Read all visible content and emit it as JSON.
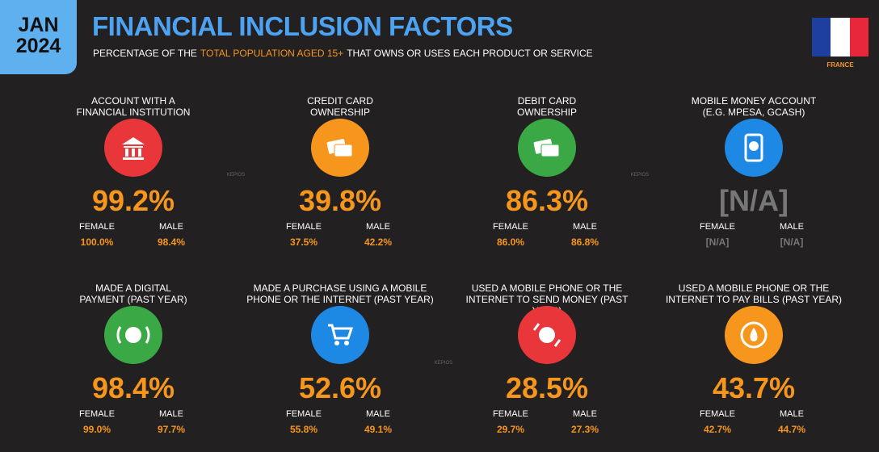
{
  "header": {
    "month": "JAN",
    "year": "2024",
    "title": "FINANCIAL INCLUSION FACTORS",
    "subtitle": [
      "PERCENTAGE OF THE",
      "TOTAL POPULATION AGED 15+",
      "THAT OWNS OR USES EACH PRODUCT OR SERVICE"
    ],
    "country": "FRANCE"
  },
  "watermark": "KEPIOS",
  "tiles": [
    {
      "label": [
        "ACCOUNT WITH A",
        "FINANCIAL INSTITUTION"
      ],
      "value": "99.2%",
      "female_label": "FEMALE",
      "female": "100.0%",
      "male_label": "MALE",
      "male": "98.4%",
      "color": "#e8363a"
    },
    {
      "label": [
        "CREDIT CARD",
        "OWNERSHIP"
      ],
      "value": "39.8%",
      "female_label": "FEMALE",
      "female": "37.5%",
      "male_label": "MALE",
      "male": "42.2%",
      "color": "#f7961c"
    },
    {
      "label": [
        "DEBIT CARD",
        "OWNERSHIP"
      ],
      "value": "86.3%",
      "female_label": "FEMALE",
      "female": "86.0%",
      "male_label": "MALE",
      "male": "86.8%",
      "color": "#3aa844"
    },
    {
      "label": [
        "MOBILE MONEY ACCOUNT",
        "(E.G. MPESA, GCASH)"
      ],
      "value": "[N/A]",
      "female_label": "FEMALE",
      "female": "[N/A]",
      "male_label": "MALE",
      "male": "[N/A]",
      "color": "#1e88e5"
    },
    {
      "label": [
        "MADE A DIGITAL",
        "PAYMENT (PAST YEAR)"
      ],
      "value": "98.4%",
      "female_label": "FEMALE",
      "female": "99.0%",
      "male_label": "MALE",
      "male": "97.7%",
      "color": "#3aa844"
    },
    {
      "label": [
        "MADE A PURCHASE USING A MOBILE",
        "PHONE OR THE INTERNET (PAST YEAR)"
      ],
      "value": "52.6%",
      "female_label": "FEMALE",
      "female": "55.8%",
      "male_label": "MALE",
      "male": "49.1%",
      "color": "#1e88e5"
    },
    {
      "label": [
        "USED A MOBILE PHONE OR THE",
        "INTERNET TO SEND MONEY (PAST YEAR)"
      ],
      "value": "28.5%",
      "female_label": "FEMALE",
      "female": "29.7%",
      "male_label": "MALE",
      "male": "27.3%",
      "color": "#e8363a"
    },
    {
      "label": [
        "USED A MOBILE PHONE OR THE",
        "INTERNET TO PAY BILLS (PAST YEAR)"
      ],
      "value": "43.7%",
      "female_label": "FEMALE",
      "female": "42.7%",
      "male_label": "MALE",
      "male": "44.7%",
      "color": "#f7961c"
    }
  ]
}
